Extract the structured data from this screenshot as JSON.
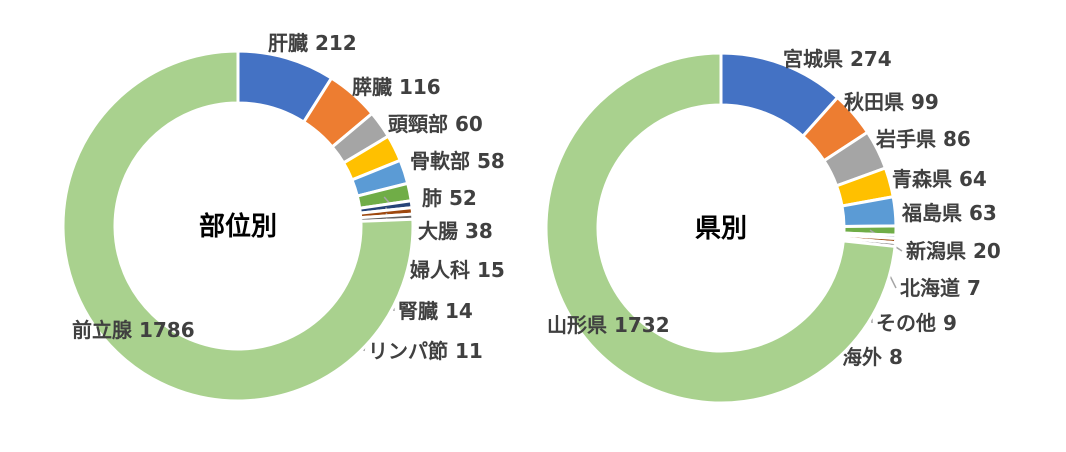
{
  "chart_data": [
    {
      "type": "pie",
      "title": "部位別",
      "categories": [
        "肝臓",
        "膵臓",
        "頭頸部",
        "骨軟部",
        "肺",
        "大腸",
        "婦人科",
        "腎臓",
        "リンパ節",
        "前立腺"
      ],
      "values": [
        212,
        116,
        60,
        58,
        52,
        38,
        15,
        14,
        11,
        1786
      ],
      "colors": [
        "#4472C4",
        "#ED7D31",
        "#A5A5A5",
        "#FFC000",
        "#5B9BD5",
        "#70AD47",
        "#264478",
        "#9E480E",
        "#636363",
        "#A9D18E"
      ]
    },
    {
      "type": "pie",
      "title": "県別",
      "categories": [
        "宮城県",
        "秋田県",
        "岩手県",
        "青森県",
        "福島県",
        "新潟県",
        "北海道",
        "その他",
        "海外",
        "山形県"
      ],
      "values": [
        274,
        99,
        86,
        64,
        63,
        20,
        7,
        9,
        8,
        1732
      ],
      "colors": [
        "#4472C4",
        "#ED7D31",
        "#A5A5A5",
        "#FFC000",
        "#5B9BD5",
        "#70AD47",
        "#264478",
        "#9E480E",
        "#636363",
        "#A9D18E"
      ]
    }
  ]
}
